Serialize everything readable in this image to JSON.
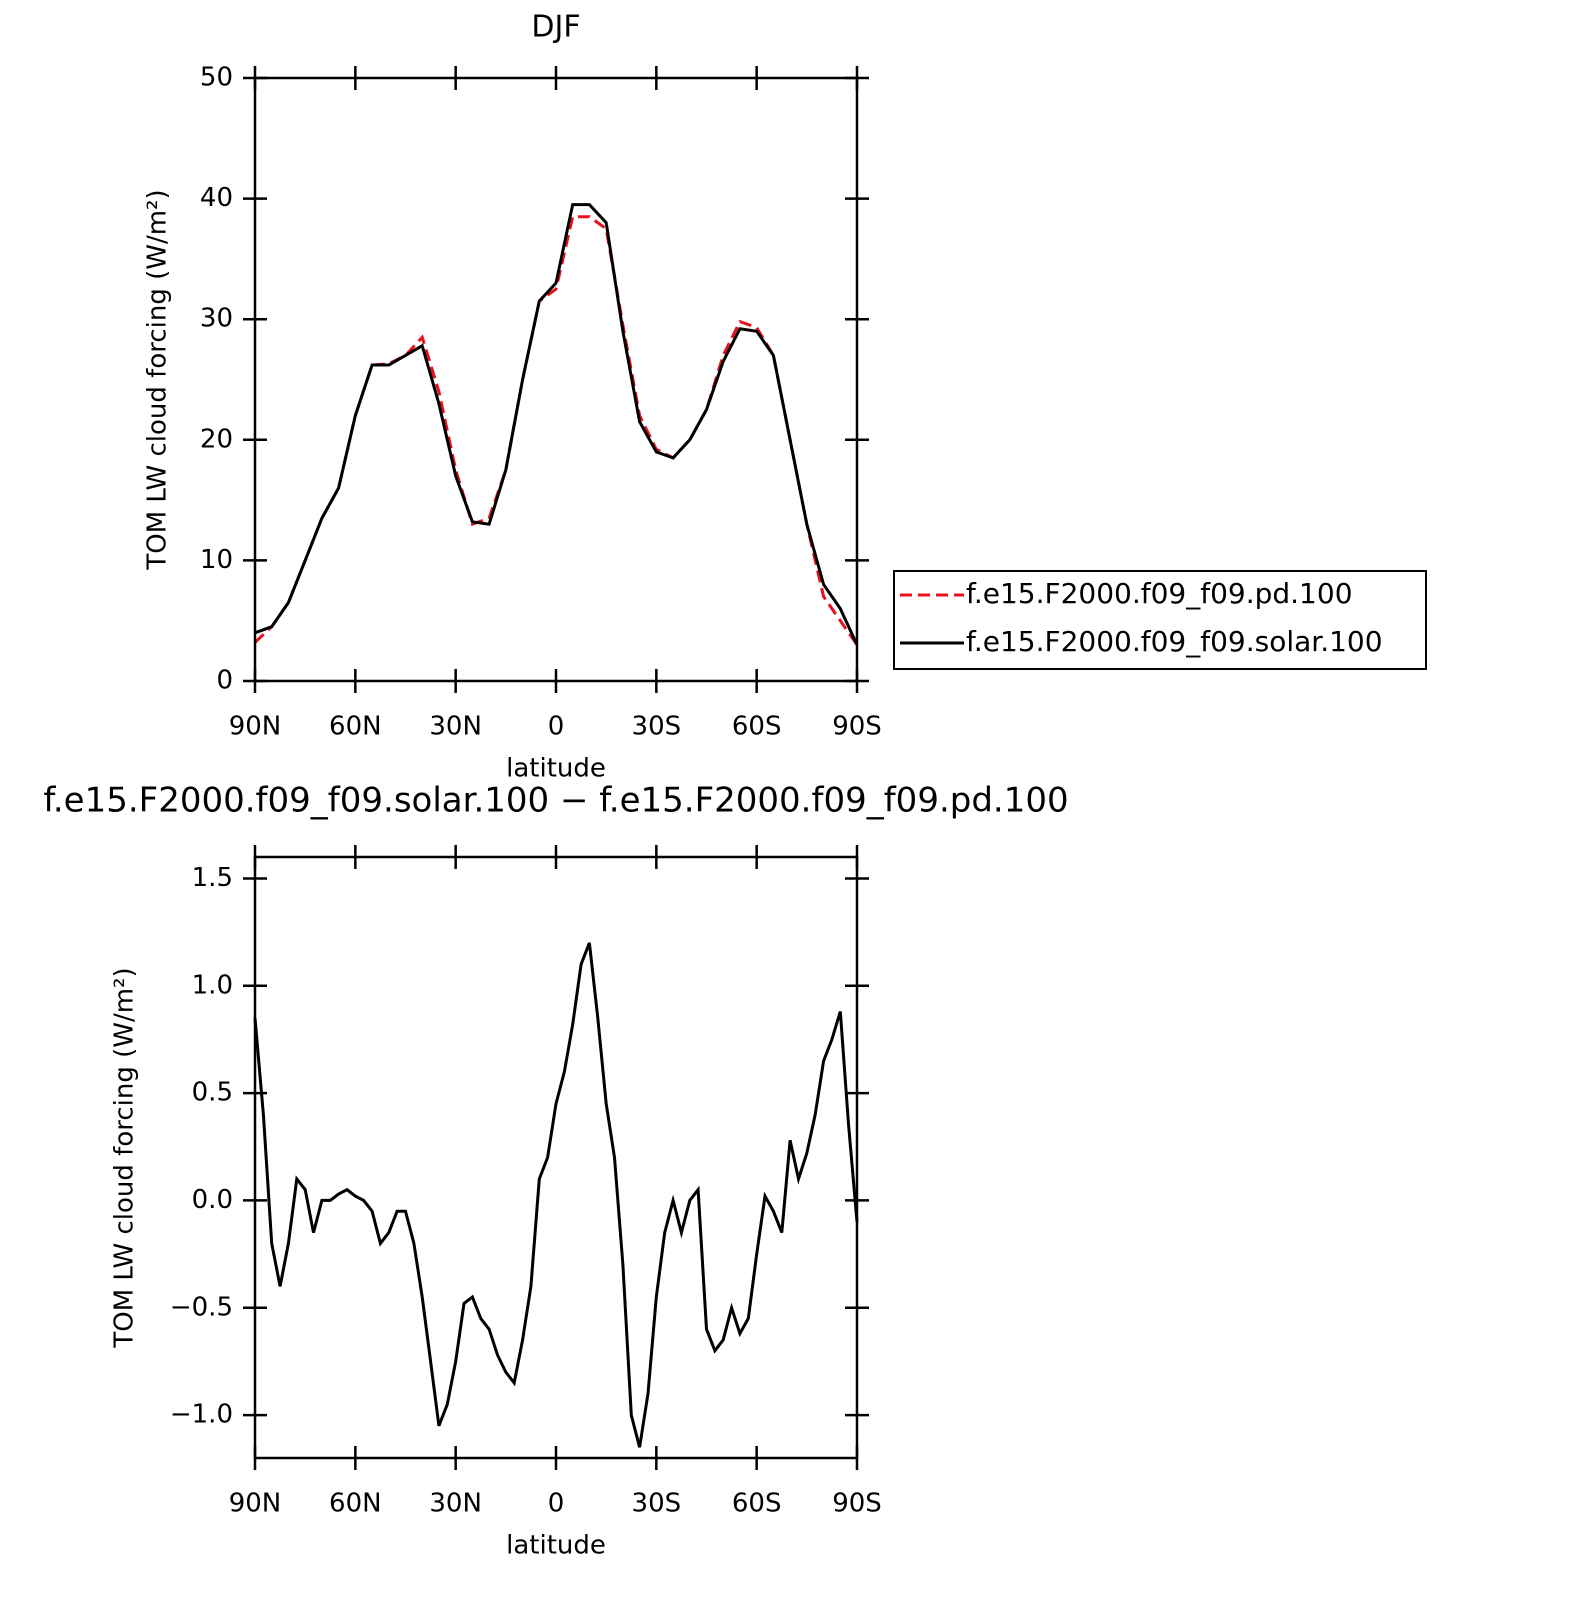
{
  "chart_data": [
    {
      "type": "line",
      "title": "DJF",
      "xlabel": "latitude",
      "ylabel": "TOM LW cloud forcing (W/m²)",
      "x": [
        90,
        85,
        80,
        75,
        70,
        65,
        60,
        55,
        50,
        45,
        40,
        35,
        30,
        25,
        20,
        15,
        10,
        5,
        0,
        -5,
        -10,
        -15,
        -20,
        -25,
        -30,
        -35,
        -40,
        -45,
        -50,
        -55,
        -60,
        -65,
        -70,
        -75,
        -80,
        -85,
        -90
      ],
      "series": [
        {
          "name": "f.e15.F2000.f09_f09.pd.100",
          "color": "#e8101a",
          "linestyle": "dashed",
          "values": [
            3.2,
            4.5,
            6.5,
            10,
            13.5,
            16,
            22,
            26.2,
            26.3,
            27,
            28.5,
            24,
            17.5,
            13,
            13.5,
            17.5,
            25,
            31.5,
            32.5,
            38.5,
            38.5,
            37.5,
            29.5,
            22,
            19.2,
            18.5,
            20,
            22.5,
            27,
            29.8,
            29.3,
            27,
            20,
            13,
            7,
            5,
            3
          ]
        },
        {
          "name": "f.e15.F2000.f09_f09.solar.100",
          "color": "#000000",
          "linestyle": "solid",
          "values": [
            4,
            4.5,
            6.5,
            10,
            13.5,
            16,
            22,
            26.2,
            26.2,
            27,
            27.8,
            23,
            17,
            13.2,
            13,
            17.5,
            25,
            31.5,
            33,
            39.5,
            39.5,
            38,
            29,
            21.5,
            19,
            18.5,
            20,
            22.5,
            26.5,
            29.2,
            29,
            27,
            20,
            13,
            8,
            6,
            3
          ]
        }
      ],
      "xlim": [
        90,
        -90
      ],
      "ylim": [
        0,
        50
      ],
      "xticks": [
        {
          "value": 90,
          "label": "90N"
        },
        {
          "value": 60,
          "label": "60N"
        },
        {
          "value": 30,
          "label": "30N"
        },
        0,
        {
          "value": -30,
          "label": "30S"
        },
        {
          "value": -60,
          "label": "60S"
        },
        {
          "value": -90,
          "label": "90S"
        }
      ],
      "yticks": [
        0,
        10,
        20,
        30,
        40,
        50
      ],
      "legend": "right"
    },
    {
      "type": "line",
      "title": "f.e15.F2000.f09_f09.solar.100 − f.e15.F2000.f09_f09.pd.100",
      "xlabel": "latitude",
      "ylabel": "TOM LW cloud forcing (W/m²)",
      "x": [
        90,
        87.5,
        85,
        82.5,
        80,
        77.5,
        75,
        72.5,
        70,
        67.5,
        65,
        62.5,
        60,
        57.5,
        55,
        52.5,
        50,
        47.5,
        45,
        42.5,
        40,
        37.5,
        35,
        32.5,
        30,
        27.5,
        25,
        22.5,
        20,
        17.5,
        15,
        12.5,
        10,
        7.5,
        5,
        2.5,
        0,
        -2.5,
        -5,
        -7.5,
        -10,
        -12.5,
        -15,
        -17.5,
        -20,
        -22.5,
        -25,
        -27.5,
        -30,
        -32.5,
        -35,
        -37.5,
        -40,
        -42.5,
        -45,
        -47.5,
        -50,
        -52.5,
        -55,
        -57.5,
        -60,
        -62.5,
        -65,
        -67.5,
        -70,
        -72.5,
        -75,
        -77.5,
        -80,
        -82.5,
        -85,
        -87.5,
        -90
      ],
      "series": [
        {
          "color": "#000000",
          "linestyle": "solid",
          "values": [
            0.85,
            0.4,
            -0.2,
            -0.4,
            -0.2,
            0.1,
            0.05,
            -0.15,
            0.0,
            0.0,
            0.03,
            0.05,
            0.02,
            0.0,
            -0.05,
            -0.2,
            -0.15,
            -0.05,
            -0.05,
            -0.2,
            -0.45,
            -0.75,
            -1.05,
            -0.95,
            -0.75,
            -0.48,
            -0.45,
            -0.55,
            -0.6,
            -0.72,
            -0.8,
            -0.85,
            -0.65,
            -0.4,
            0.1,
            0.2,
            0.45,
            0.6,
            0.82,
            1.1,
            1.2,
            0.85,
            0.45,
            0.2,
            -0.3,
            -1.0,
            -1.15,
            -0.9,
            -0.45,
            -0.15,
            0.0,
            -0.15,
            0.0,
            0.05,
            -0.6,
            -0.7,
            -0.65,
            -0.5,
            -0.62,
            -0.55,
            -0.25,
            0.02,
            -0.05,
            -0.15,
            0.28,
            0.1,
            0.22,
            0.4,
            0.65,
            0.75,
            0.88,
            0.35,
            -0.1
          ]
        }
      ],
      "xlim": [
        90,
        -90
      ],
      "ylim": [
        -1.2,
        1.6
      ],
      "xticks": [
        {
          "value": 90,
          "label": "90N"
        },
        {
          "value": 60,
          "label": "60N"
        },
        {
          "value": 30,
          "label": "30N"
        },
        0,
        {
          "value": -30,
          "label": "30S"
        },
        {
          "value": -60,
          "label": "60S"
        },
        {
          "value": -90,
          "label": "90S"
        }
      ],
      "yticks": [
        {
          "value": -1.0,
          "label": "−1.0"
        },
        {
          "value": -0.5,
          "label": "−0.5"
        },
        {
          "value": 0.0,
          "label": "0.0"
        },
        0.5,
        {
          "value": 1.0,
          "label": "1.0"
        },
        1.5
      ]
    }
  ]
}
